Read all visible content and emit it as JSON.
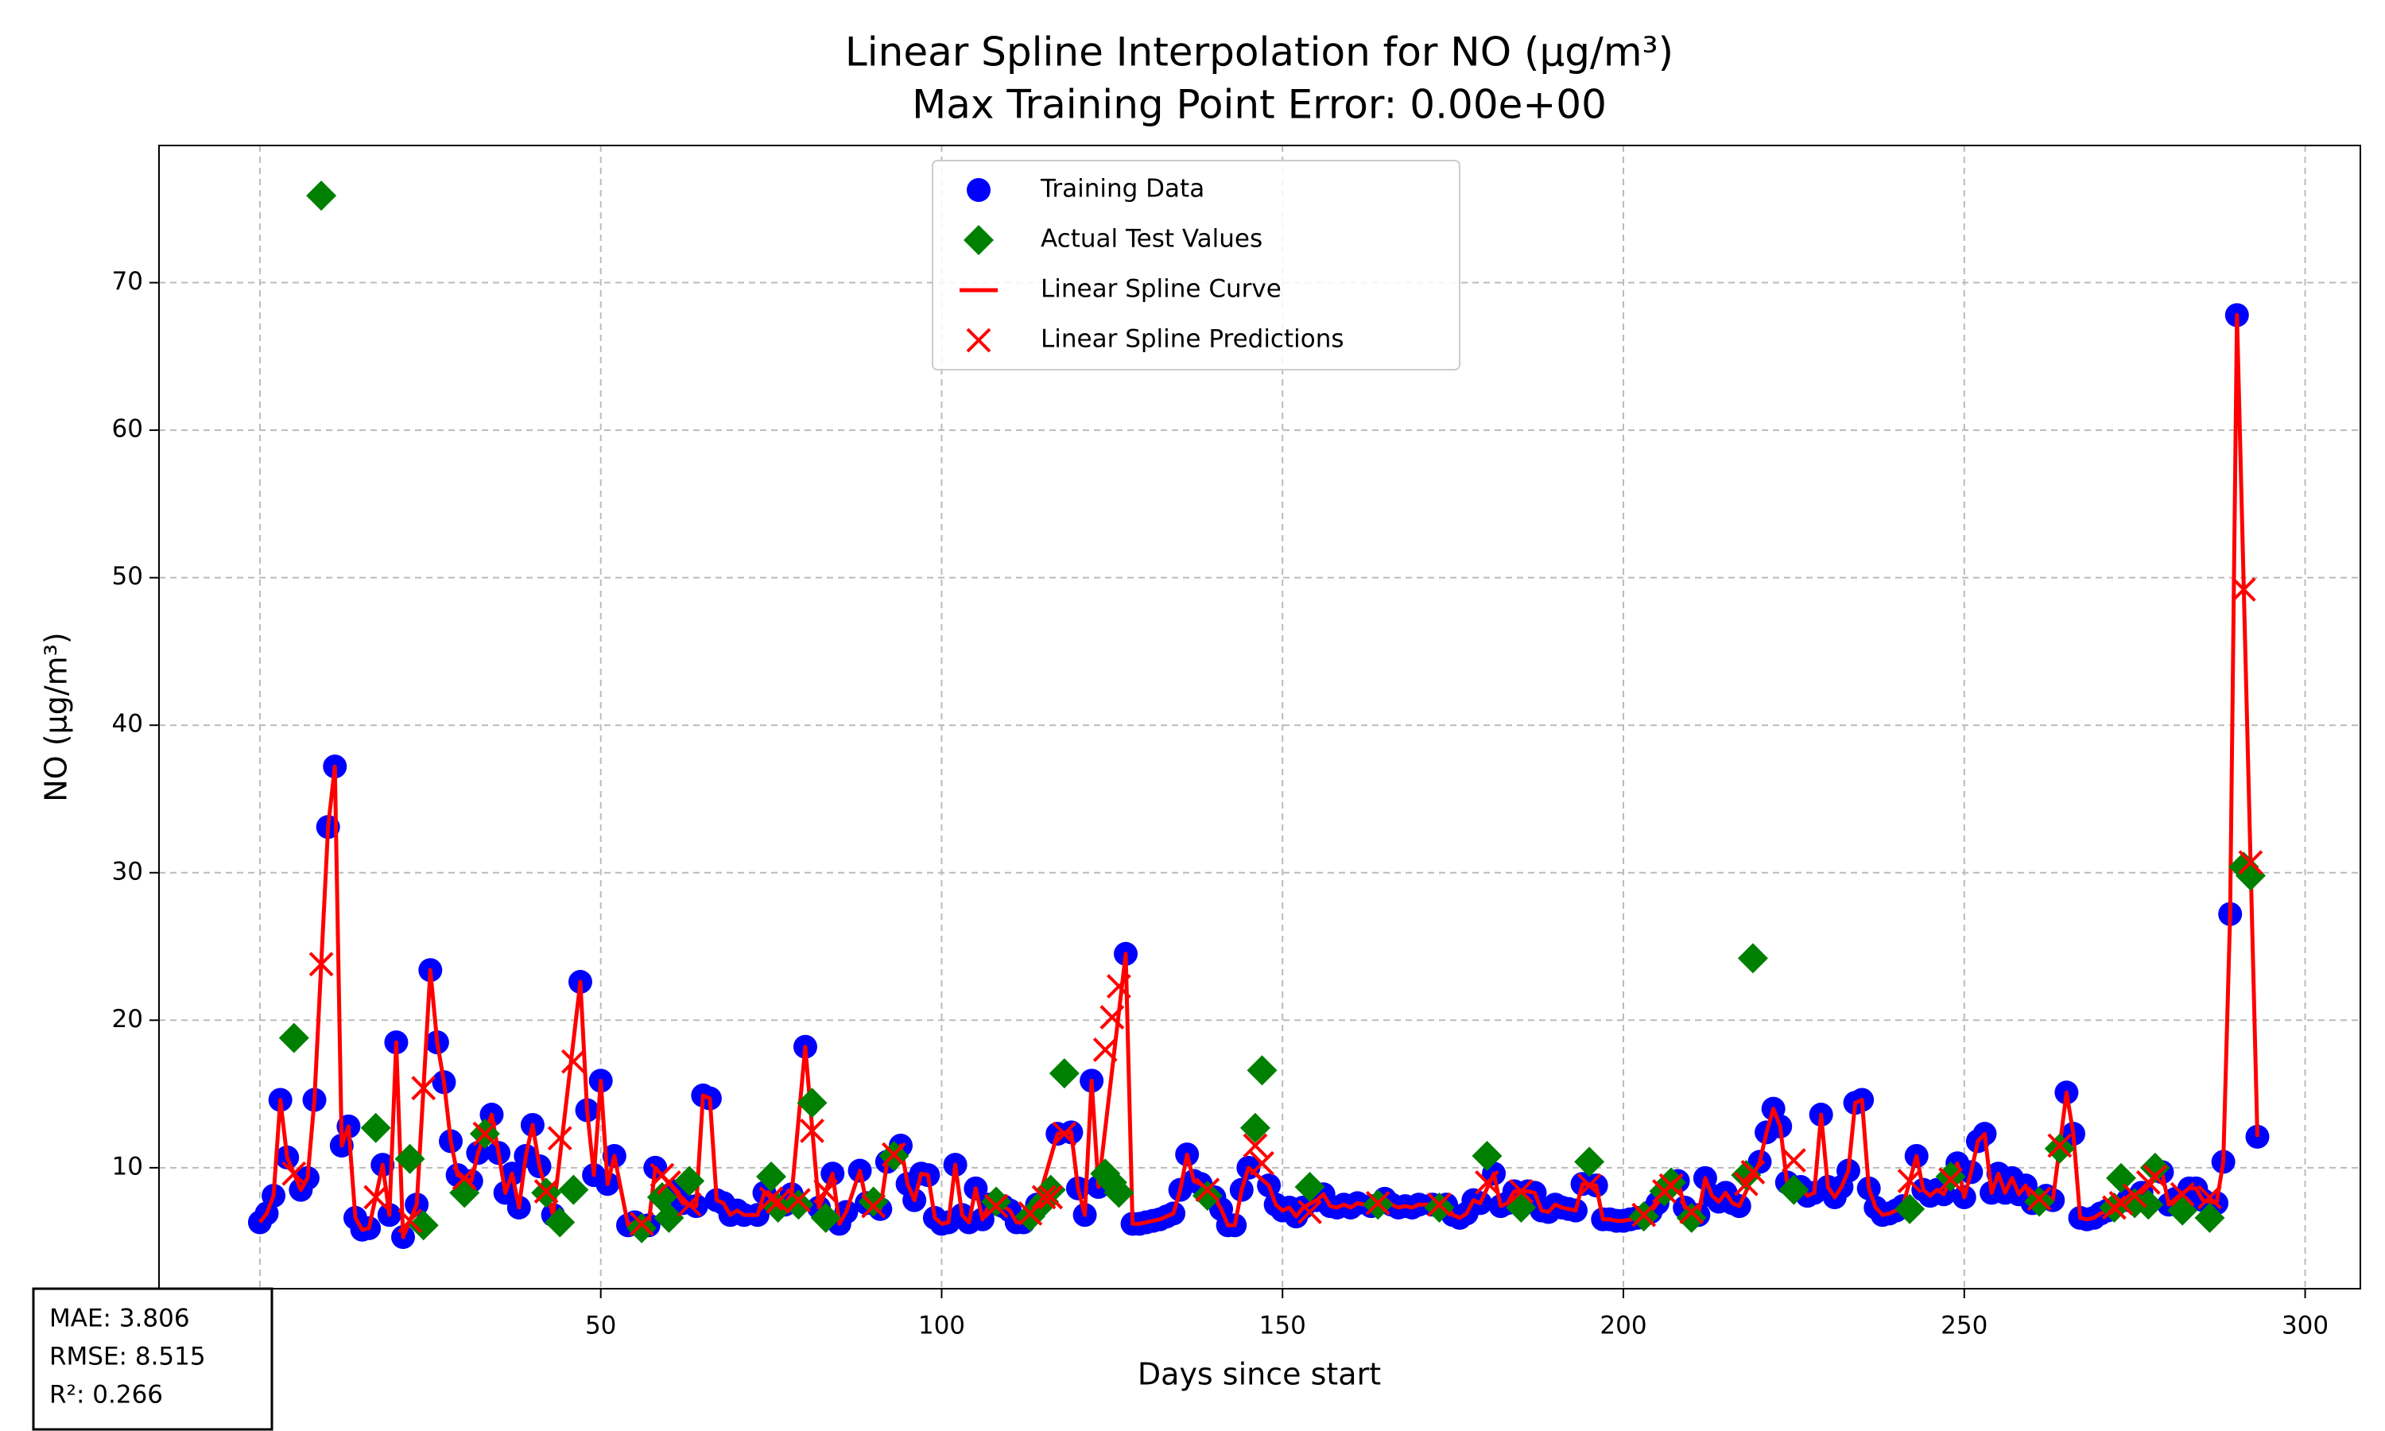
{
  "chart_data": {
    "type": "scatter",
    "title": "Linear Spline Interpolation for NO (µg/m³)",
    "subtitle": "Max Training Point Error: 0.00e+00",
    "x_label": "Days since start",
    "y_label": "NO (µg/m³)",
    "xlim": [
      -14.8,
      308.1
    ],
    "ylim": [
      1.8,
      79.3
    ],
    "xticks": [
      0,
      50,
      100,
      150,
      200,
      250,
      300
    ],
    "yticks": [
      10,
      20,
      30,
      40,
      50,
      60,
      70
    ],
    "grid": true,
    "legend": "upper center",
    "annotations": [
      "MAE: 3.806",
      "RMSE: 8.515",
      "R²: 0.266"
    ],
    "series": [
      {
        "name": "Training Data",
        "color": "#0000ff",
        "marker": "circle",
        "x": [
          0,
          1,
          2,
          3,
          4,
          6,
          7,
          8,
          10,
          11,
          12,
          13,
          14,
          15,
          16,
          18,
          19,
          20,
          21,
          23,
          25,
          26,
          27,
          28,
          29,
          31,
          32,
          34,
          35,
          36,
          37,
          38,
          39,
          40,
          41,
          43,
          47,
          48,
          49,
          50,
          51,
          52,
          54,
          55,
          57,
          58,
          61,
          62,
          64,
          65,
          66,
          67,
          68,
          69,
          70,
          71,
          73,
          74,
          77,
          78,
          80,
          82,
          84,
          85,
          86,
          88,
          89,
          91,
          92,
          94,
          95,
          96,
          97,
          98,
          99,
          100,
          101,
          102,
          103,
          104,
          105,
          106,
          107,
          109,
          110,
          111,
          112,
          114,
          117,
          119,
          120,
          121,
          122,
          123,
          127,
          128,
          129,
          130,
          131,
          132,
          133,
          134,
          135,
          136,
          137,
          138,
          140,
          141,
          142,
          143,
          144,
          145,
          148,
          149,
          150,
          151,
          152,
          153,
          155,
          156,
          157,
          158,
          159,
          160,
          161,
          163,
          165,
          166,
          167,
          168,
          169,
          170,
          172,
          174,
          175,
          176,
          177,
          178,
          179,
          181,
          182,
          183,
          184,
          186,
          187,
          188,
          189,
          190,
          191,
          192,
          193,
          194,
          196,
          197,
          198,
          199,
          200,
          201,
          202,
          204,
          205,
          208,
          209,
          211,
          212,
          213,
          214,
          215,
          216,
          217,
          220,
          221,
          222,
          223,
          224,
          226,
          227,
          228,
          229,
          230,
          231,
          232,
          233,
          234,
          235,
          236,
          237,
          238,
          239,
          240,
          241,
          243,
          244,
          245,
          246,
          247,
          249,
          250,
          251,
          252,
          253,
          254,
          255,
          256,
          257,
          258,
          259,
          260,
          262,
          263,
          265,
          266,
          267,
          268,
          269,
          270,
          271,
          274,
          276,
          279,
          280,
          281,
          283,
          284,
          285,
          287,
          288,
          289,
          290,
          293
        ],
        "values": [
          6.3,
          6.9,
          8.1,
          14.6,
          10.7,
          8.5,
          9.3,
          14.6,
          33.1,
          37.2,
          11.5,
          12.8,
          6.6,
          5.8,
          5.9,
          10.2,
          6.8,
          18.5,
          5.3,
          7.5,
          23.4,
          18.5,
          15.8,
          11.8,
          9.5,
          9.1,
          11,
          13.6,
          11,
          8.3,
          9.6,
          7.3,
          10.8,
          12.9,
          10.1,
          6.8,
          22.6,
          13.9,
          9.5,
          15.9,
          8.9,
          10.8,
          6.1,
          6.3,
          6.1,
          10,
          8.4,
          7.6,
          7.4,
          14.9,
          14.7,
          7.8,
          7.6,
          6.8,
          7.1,
          6.8,
          6.8,
          8.3,
          7.5,
          8.2,
          18.2,
          7.3,
          9.6,
          6.2,
          7,
          9.8,
          7.6,
          7.2,
          10.4,
          11.5,
          8.9,
          7.8,
          9.6,
          9.5,
          6.6,
          6.2,
          6.3,
          10.2,
          6.8,
          6.3,
          8.6,
          6.5,
          7.5,
          7.4,
          7.1,
          6.3,
          6.3,
          7.5,
          12.3,
          12.4,
          8.6,
          6.8,
          15.9,
          8.7,
          24.5,
          6.2,
          6.2,
          6.3,
          6.4,
          6.5,
          6.7,
          6.9,
          8.5,
          10.9,
          9.1,
          8.9,
          8,
          7.2,
          6.1,
          6.1,
          8.5,
          10,
          8.8,
          7.5,
          7.1,
          7.3,
          6.7,
          7.3,
          7.8,
          8.2,
          7.4,
          7.3,
          7.5,
          7.3,
          7.6,
          7.4,
          7.9,
          7.5,
          7.3,
          7.4,
          7.3,
          7.5,
          7.5,
          7.5,
          6.8,
          6.6,
          6.9,
          7.8,
          7.6,
          9.6,
          7.4,
          7.6,
          8.4,
          8.4,
          8.3,
          7.1,
          7,
          7.5,
          7.3,
          7.2,
          7.1,
          8.9,
          8.8,
          6.5,
          6.5,
          6.4,
          6.4,
          6.5,
          6.6,
          7,
          7.6,
          9.1,
          7.3,
          6.8,
          9.3,
          8.1,
          7.7,
          8.3,
          7.6,
          7.4,
          10.4,
          12.4,
          14,
          12.8,
          9,
          8.7,
          8.1,
          8.3,
          13.6,
          8.7,
          8,
          8.7,
          9.8,
          14.4,
          14.6,
          8.6,
          7.3,
          6.8,
          6.9,
          7.1,
          7.4,
          10.8,
          8.5,
          8.1,
          8.5,
          8.2,
          10.3,
          8,
          9.7,
          11.8,
          12.3,
          8.3,
          9.6,
          8.3,
          9.3,
          8.2,
          8.8,
          7.6,
          8.1,
          7.8,
          15.1,
          12.3,
          6.6,
          6.5,
          6.6,
          6.9,
          7.1,
          7.8,
          8.3,
          9.7,
          7.5,
          7.9,
          8.6,
          8.6,
          7.8,
          7.6,
          10.4,
          27.2,
          67.8,
          12.1
        ]
      },
      {
        "name": "Actual Test Values",
        "color": "#008000",
        "marker": "diamond",
        "x": [
          5,
          9,
          17,
          22,
          24,
          30,
          33,
          42,
          44,
          46,
          56,
          59,
          60,
          63,
          75,
          76,
          79,
          81,
          83,
          90,
          93,
          108,
          113,
          115,
          116,
          118,
          124,
          125,
          126,
          139,
          146,
          147,
          154,
          164,
          173,
          180,
          185,
          195,
          203,
          206,
          207,
          210,
          218,
          219,
          225,
          242,
          248,
          261,
          264,
          272,
          273,
          275,
          277,
          278,
          282,
          286,
          291,
          292
        ],
        "values": [
          18.8,
          75.9,
          12.7,
          10.6,
          6.1,
          8.3,
          12.3,
          8.3,
          6.3,
          8.5,
          5.9,
          8.0,
          6.6,
          9.1,
          9.4,
          7.3,
          7.5,
          14.4,
          6.6,
          7.7,
          10.8,
          7.7,
          6.7,
          7.7,
          8.5,
          16.4,
          9.6,
          9.0,
          8.3,
          8.1,
          12.7,
          16.6,
          8.7,
          7.5,
          7.3,
          10.8,
          7.3,
          10.4,
          6.7,
          8.4,
          9.0,
          6.6,
          9.5,
          24.2,
          8.5,
          7.2,
          9.4,
          7.7,
          11.3,
          7.3,
          9.3,
          7.6,
          7.5,
          10.0,
          7.1,
          6.6,
          30.4,
          29.8
        ]
      },
      {
        "name": "Linear Spline Curve",
        "color": "#ff0000",
        "marker": "line"
      },
      {
        "name": "Linear Spline Predictions",
        "color": "#ff0000",
        "marker": "x",
        "x": [
          5,
          9,
          17,
          22,
          24,
          30,
          33,
          42,
          44,
          46,
          56,
          59,
          60,
          63,
          75,
          76,
          79,
          81,
          83,
          90,
          93,
          108,
          113,
          115,
          116,
          118,
          124,
          125,
          126,
          139,
          146,
          147,
          154,
          164,
          173,
          180,
          185,
          195,
          203,
          206,
          207,
          210,
          218,
          219,
          225,
          242,
          248,
          261,
          264,
          272,
          273,
          275,
          277,
          278,
          282,
          286,
          291,
          292
        ],
        "values": [
          9.6,
          23.8,
          8.0,
          6.4,
          15.4,
          9.3,
          12.3,
          8.4,
          12.0,
          17.2,
          6.2,
          9.5,
          9.0,
          7.5,
          7.9,
          7.7,
          7.8,
          12.5,
          8.4,
          7.4,
          10.9,
          7.4,
          6.9,
          8.0,
          8.0,
          12.3,
          18.0,
          20.2,
          22.3,
          8.5,
          11.5,
          10.3,
          7.0,
          7.6,
          7.5,
          9.0,
          8.4,
          8.8,
          6.8,
          8.4,
          8.8,
          7.0,
          8.9,
          9.7,
          10.5,
          9.1,
          9.2,
          7.9,
          11.5,
          7.3,
          7.6,
          8.1,
          9.0,
          9.4,
          8.2,
          8.0,
          49.2,
          30.7
        ]
      }
    ]
  }
}
